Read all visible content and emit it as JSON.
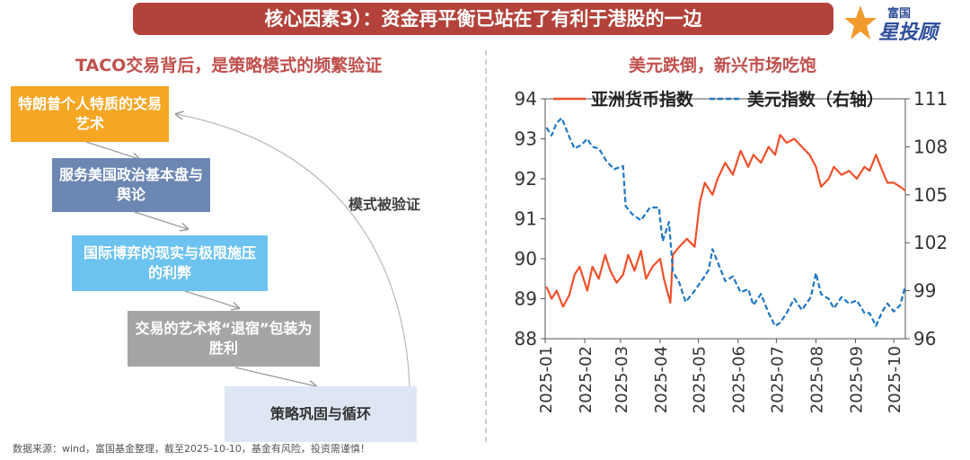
{
  "header": {
    "title": "核心因素3）：资金再平衡已站在了有利于港股的一边"
  },
  "brand": {
    "top": "富国",
    "main": "星投顾",
    "icon": "star-logo-icon"
  },
  "left_panel": {
    "title": "TACO交易背后，是策略模式的频繁验证",
    "steps": [
      {
        "label": "特朗普个人特质的交易艺术",
        "color": "#f5a623"
      },
      {
        "label": "服务美国政治基本盘与舆论",
        "color": "#6d87b3"
      },
      {
        "label": "国际博弈的现实与极限施压的利弊",
        "color": "#6cc3ef"
      },
      {
        "label": "交易的艺术将“退宿”包装为胜利",
        "color": "#a5a5a5"
      },
      {
        "label": "策略巩固与循环",
        "color": "#dde6f2"
      }
    ],
    "cycle_label": "模式被验证"
  },
  "right_panel": {
    "title": "美元跌倒，新兴市场吃饱"
  },
  "footnote": "数据来源：wind，富国基金整理，截至2025-10-10，基金有风险，投资需谨慎！",
  "chart_data": {
    "type": "line",
    "x_type": "date",
    "x_ticks": [
      "2025-01",
      "2025-02",
      "2025-03",
      "2025-04",
      "2025-05",
      "2025-06",
      "2025-07",
      "2025-08",
      "2025-09",
      "2025-10"
    ],
    "y_left": {
      "ticks": [
        88,
        89,
        90,
        91,
        92,
        93,
        94
      ],
      "range": [
        88,
        94
      ]
    },
    "y_right": {
      "ticks": [
        96,
        99,
        102,
        105,
        108,
        111
      ],
      "range": [
        96,
        111
      ]
    },
    "series": [
      {
        "name": "亚洲货币指数",
        "axis": "left",
        "color": "#f0502a",
        "style": "solid",
        "points": [
          [
            "2025-01-02",
            89.3
          ],
          [
            "2025-01-06",
            89.0
          ],
          [
            "2025-01-10",
            89.2
          ],
          [
            "2025-01-15",
            88.8
          ],
          [
            "2025-01-20",
            89.1
          ],
          [
            "2025-01-24",
            89.6
          ],
          [
            "2025-01-28",
            89.8
          ],
          [
            "2025-02-03",
            89.2
          ],
          [
            "2025-02-07",
            89.8
          ],
          [
            "2025-02-12",
            89.5
          ],
          [
            "2025-02-17",
            90.1
          ],
          [
            "2025-02-21",
            89.7
          ],
          [
            "2025-02-26",
            89.4
          ],
          [
            "2025-03-03",
            89.6
          ],
          [
            "2025-03-07",
            90.1
          ],
          [
            "2025-03-12",
            89.7
          ],
          [
            "2025-03-17",
            90.2
          ],
          [
            "2025-03-21",
            89.5
          ],
          [
            "2025-03-26",
            89.8
          ],
          [
            "2025-04-01",
            90.0
          ],
          [
            "2025-04-04",
            89.5
          ],
          [
            "2025-04-09",
            88.9
          ],
          [
            "2025-04-11",
            90.1
          ],
          [
            "2025-04-16",
            90.3
          ],
          [
            "2025-04-22",
            90.5
          ],
          [
            "2025-04-28",
            90.3
          ],
          [
            "2025-05-02",
            91.4
          ],
          [
            "2025-05-06",
            91.9
          ],
          [
            "2025-05-12",
            91.6
          ],
          [
            "2025-05-16",
            92.0
          ],
          [
            "2025-05-22",
            92.4
          ],
          [
            "2025-05-28",
            92.1
          ],
          [
            "2025-06-03",
            92.7
          ],
          [
            "2025-06-09",
            92.3
          ],
          [
            "2025-06-13",
            92.6
          ],
          [
            "2025-06-19",
            92.4
          ],
          [
            "2025-06-25",
            92.8
          ],
          [
            "2025-06-30",
            92.6
          ],
          [
            "2025-07-04",
            93.1
          ],
          [
            "2025-07-09",
            92.9
          ],
          [
            "2025-07-15",
            93.0
          ],
          [
            "2025-07-21",
            92.8
          ],
          [
            "2025-07-27",
            92.6
          ],
          [
            "2025-08-01",
            92.3
          ],
          [
            "2025-08-05",
            91.8
          ],
          [
            "2025-08-11",
            92.0
          ],
          [
            "2025-08-15",
            92.3
          ],
          [
            "2025-08-21",
            92.1
          ],
          [
            "2025-08-27",
            92.2
          ],
          [
            "2025-09-02",
            92.0
          ],
          [
            "2025-09-08",
            92.3
          ],
          [
            "2025-09-12",
            92.2
          ],
          [
            "2025-09-17",
            92.6
          ],
          [
            "2025-09-22",
            92.2
          ],
          [
            "2025-09-26",
            91.9
          ],
          [
            "2025-10-01",
            91.9
          ],
          [
            "2025-10-06",
            91.8
          ],
          [
            "2025-10-10",
            91.7
          ]
        ]
      },
      {
        "name": "美元指数（右轴）",
        "axis": "right",
        "color": "#1f77c4",
        "style": "dashed",
        "points": [
          [
            "2025-01-02",
            109.2
          ],
          [
            "2025-01-06",
            108.7
          ],
          [
            "2025-01-10",
            109.5
          ],
          [
            "2025-01-14",
            109.8
          ],
          [
            "2025-01-20",
            108.6
          ],
          [
            "2025-01-24",
            107.9
          ],
          [
            "2025-01-29",
            108.1
          ],
          [
            "2025-02-03",
            108.5
          ],
          [
            "2025-02-07",
            108.0
          ],
          [
            "2025-02-12",
            107.9
          ],
          [
            "2025-02-18",
            107.1
          ],
          [
            "2025-02-24",
            106.6
          ],
          [
            "2025-03-03",
            106.8
          ],
          [
            "2025-03-05",
            104.3
          ],
          [
            "2025-03-10",
            103.8
          ],
          [
            "2025-03-17",
            103.4
          ],
          [
            "2025-03-24",
            104.2
          ],
          [
            "2025-03-31",
            104.2
          ],
          [
            "2025-04-03",
            102.1
          ],
          [
            "2025-04-08",
            103.3
          ],
          [
            "2025-04-11",
            100.2
          ],
          [
            "2025-04-16",
            99.5
          ],
          [
            "2025-04-21",
            98.3
          ],
          [
            "2025-04-28",
            99.0
          ],
          [
            "2025-05-05",
            99.8
          ],
          [
            "2025-05-09",
            100.3
          ],
          [
            "2025-05-12",
            101.6
          ],
          [
            "2025-05-16",
            100.8
          ],
          [
            "2025-05-22",
            99.6
          ],
          [
            "2025-05-28",
            99.9
          ],
          [
            "2025-06-03",
            98.9
          ],
          [
            "2025-06-09",
            99.1
          ],
          [
            "2025-06-13",
            98.1
          ],
          [
            "2025-06-19",
            98.8
          ],
          [
            "2025-06-25",
            97.6
          ],
          [
            "2025-06-30",
            96.8
          ],
          [
            "2025-07-04",
            97.0
          ],
          [
            "2025-07-09",
            97.6
          ],
          [
            "2025-07-15",
            98.5
          ],
          [
            "2025-07-21",
            97.8
          ],
          [
            "2025-07-28",
            98.6
          ],
          [
            "2025-08-01",
            100.1
          ],
          [
            "2025-08-05",
            98.8
          ],
          [
            "2025-08-11",
            98.5
          ],
          [
            "2025-08-15",
            97.9
          ],
          [
            "2025-08-21",
            98.6
          ],
          [
            "2025-08-27",
            98.2
          ],
          [
            "2025-09-02",
            98.4
          ],
          [
            "2025-09-08",
            97.6
          ],
          [
            "2025-09-12",
            97.6
          ],
          [
            "2025-09-17",
            96.8
          ],
          [
            "2025-09-22",
            97.7
          ],
          [
            "2025-09-26",
            98.2
          ],
          [
            "2025-10-01",
            97.7
          ],
          [
            "2025-10-06",
            98.1
          ],
          [
            "2025-10-10",
            99.3
          ]
        ]
      }
    ]
  }
}
